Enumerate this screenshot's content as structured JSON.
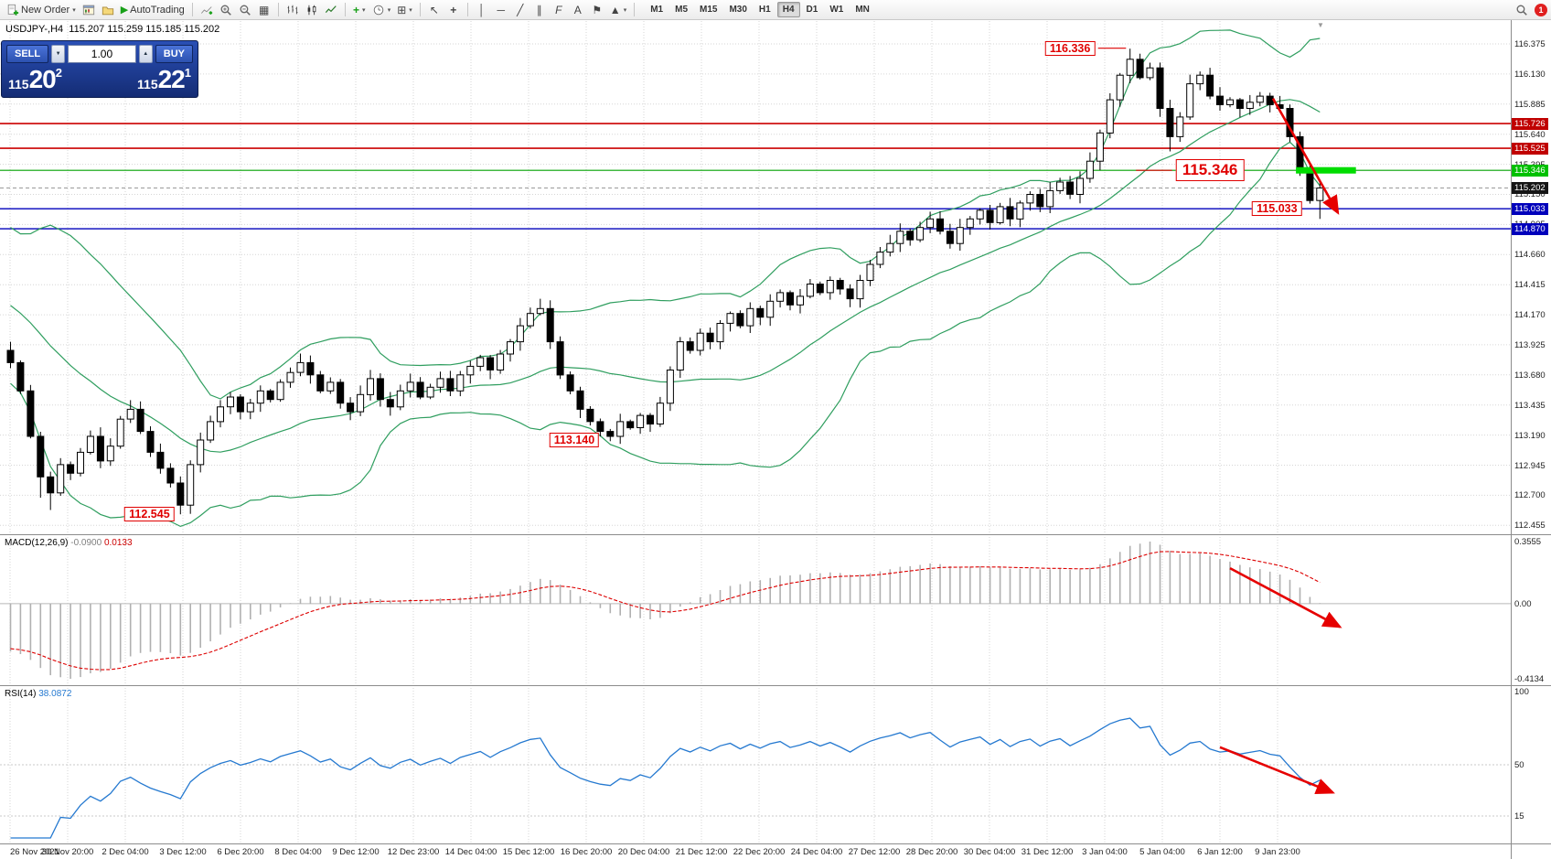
{
  "toolbar": {
    "new_order": "New Order",
    "autotrading": "AutoTrading",
    "timeframes": [
      "M1",
      "M5",
      "M15",
      "M30",
      "H1",
      "H4",
      "D1",
      "W1",
      "MN"
    ],
    "active_timeframe": "H4",
    "notification_badge": "1",
    "icons": {
      "dropdown": "▾",
      "cursor": "↖",
      "crosshair": "+",
      "vertical_line": "│",
      "horizontal_line": "─",
      "trendline": "╱",
      "channel": "∥",
      "fibonacci": "F",
      "text_tool": "A",
      "label_tool": "⚑",
      "shapes_tool": "▲",
      "tile_windows": "▦",
      "templates": "⊞",
      "play": "▶",
      "volume_down": "▼",
      "volume_up": "▲",
      "shift_marker": "▼"
    }
  },
  "trade_panel": {
    "sell_label": "SELL",
    "buy_label": "BUY",
    "volume": "1.00",
    "sell_price": {
      "main": "115",
      "big": "20",
      "sup": "2"
    },
    "buy_price": {
      "main": "115",
      "big": "22",
      "sup": "1"
    }
  },
  "chart": {
    "symbol_title": "USDJPY-,H4",
    "ohlc_line": "115.207 115.259 115.185 115.202",
    "axis_labels": [
      "116.375",
      "116.130",
      "115.885",
      "115.640",
      "115.395",
      "115.150",
      "114.905",
      "114.660",
      "114.415",
      "114.170",
      "113.925",
      "113.680",
      "113.435",
      "113.190",
      "112.945",
      "112.700",
      "112.455"
    ],
    "price_badges": [
      {
        "text": "115.726",
        "bg": "#c00000",
        "fg": "#ffffff"
      },
      {
        "text": "115.525",
        "bg": "#c00000",
        "fg": "#ffffff"
      },
      {
        "text": "115.346",
        "bg": "#00c000",
        "fg": "#ffffff"
      },
      {
        "text": "115.202",
        "bg": "#151515",
        "fg": "#ffffff"
      },
      {
        "text": "115.033",
        "bg": "#0000bb",
        "fg": "#ffffff"
      },
      {
        "text": "114.870",
        "bg": "#0000bb",
        "fg": "#ffffff"
      }
    ],
    "time_labels": [
      "26 Nov 2021",
      "30 Nov 20:00",
      "2 Dec 04:00",
      "3 Dec 12:00",
      "6 Dec 20:00",
      "8 Dec 04:00",
      "9 Dec 12:00",
      "12 Dec 23:00",
      "14 Dec 04:00",
      "15 Dec 12:00",
      "16 Dec 20:00",
      "20 Dec 04:00",
      "21 Dec 12:00",
      "22 Dec 20:00",
      "24 Dec 04:00",
      "27 Dec 12:00",
      "28 Dec 20:00",
      "30 Dec 04:00",
      "31 Dec 12:00",
      "3 Jan 04:00",
      "5 Jan 04:00",
      "6 Jan 12:00",
      "9 Jan 23:00"
    ]
  },
  "macd": {
    "label": "MACD(12,26,9)",
    "value_main": "-0.0900",
    "value_signal": "0.0133",
    "axis": [
      "0.3555",
      "0.00",
      "-0.4134"
    ]
  },
  "rsi": {
    "label": "RSI(14)",
    "value": "38.0872",
    "axis": [
      "100",
      "50",
      "15"
    ]
  },
  "chart_data": {
    "type": "candlestick",
    "symbol": "USDJPY-",
    "timeframe": "H4",
    "price_range": [
      112.435,
      116.375
    ],
    "first_open": 113.88,
    "closes": [
      113.78,
      113.55,
      113.18,
      112.85,
      112.72,
      112.95,
      112.88,
      113.05,
      113.18,
      112.98,
      113.1,
      113.32,
      113.4,
      113.22,
      113.05,
      112.92,
      112.8,
      112.62,
      112.95,
      113.15,
      113.3,
      113.42,
      113.5,
      113.38,
      113.45,
      113.55,
      113.48,
      113.62,
      113.7,
      113.78,
      113.68,
      113.55,
      113.62,
      113.45,
      113.38,
      113.52,
      113.65,
      113.48,
      113.42,
      113.55,
      113.62,
      113.5,
      113.58,
      113.65,
      113.55,
      113.68,
      113.75,
      113.82,
      113.72,
      113.85,
      113.95,
      114.08,
      114.18,
      114.22,
      113.95,
      113.68,
      113.55,
      113.4,
      113.3,
      113.22,
      113.18,
      113.3,
      113.25,
      113.35,
      113.28,
      113.45,
      113.72,
      113.95,
      113.88,
      114.02,
      113.95,
      114.1,
      114.18,
      114.08,
      114.22,
      114.15,
      114.28,
      114.35,
      114.25,
      114.32,
      114.42,
      114.35,
      114.45,
      114.38,
      114.3,
      114.45,
      114.58,
      114.68,
      114.75,
      114.85,
      114.78,
      114.88,
      114.95,
      114.85,
      114.75,
      114.88,
      114.95,
      115.02,
      114.92,
      115.05,
      114.95,
      115.08,
      115.15,
      115.05,
      115.18,
      115.25,
      115.15,
      115.28,
      115.42,
      115.65,
      115.92,
      116.12,
      116.25,
      116.1,
      116.18,
      115.85,
      115.62,
      115.78,
      116.05,
      116.12,
      115.95,
      115.88,
      115.92,
      115.85,
      115.9,
      115.95,
      115.88,
      115.85,
      115.62,
      115.35,
      115.1,
      115.202
    ],
    "pre_closes": [
      115.3,
      115.24,
      115.18,
      115.1,
      115.04,
      114.96,
      114.9,
      114.82,
      114.76,
      114.68,
      114.62,
      114.55,
      114.48,
      114.42,
      114.35,
      114.3,
      114.24,
      114.18,
      114.12,
      114.06,
      114.0,
      113.97,
      113.94,
      113.91,
      113.88,
      113.85
    ],
    "extremes": {
      "3": {
        "l": 112.68
      },
      "4": {
        "l": 112.58
      },
      "17": {
        "l": 112.545
      },
      "53": {
        "h": 114.3
      },
      "60": {
        "l": 113.14
      },
      "112": {
        "h": 116.336
      },
      "116": {
        "l": 115.5
      },
      "131": {
        "l": 114.95
      }
    },
    "levels": [
      {
        "price": 115.726,
        "color": "#cc0000",
        "width": 1.6
      },
      {
        "price": 115.525,
        "color": "#cc0000",
        "width": 1.6
      },
      {
        "price": 115.346,
        "color": "#00a000",
        "width": 1.2
      },
      {
        "price": 115.033,
        "color": "#0000bb",
        "width": 1.4
      },
      {
        "price": 114.87,
        "color": "#0000bb",
        "width": 1.4
      }
    ],
    "bid_line": 115.202,
    "zone": {
      "i1": 128.6,
      "i2": 134.6,
      "price": 115.346,
      "color": "#00dd00"
    },
    "annotations": [
      {
        "text": "116.336",
        "i": 106,
        "price": 116.34,
        "size": "normal"
      },
      {
        "text": "115.346",
        "i": 120,
        "price": 115.346,
        "size": "big"
      },
      {
        "text": "115.033",
        "i": 126.7,
        "price": 115.033,
        "size": "normal"
      },
      {
        "text": "113.140",
        "i": 56.4,
        "price": 113.15,
        "size": "normal"
      },
      {
        "text": "112.545",
        "i": 13.9,
        "price": 112.545,
        "size": "normal"
      }
    ],
    "leaders": [
      {
        "i1": 108.8,
        "i2": 111.6,
        "price": 116.34
      },
      {
        "i1": 112.6,
        "i2": 116.2,
        "price": 115.346
      }
    ],
    "arrows": [
      {
        "pane": "main",
        "i1": 126.3,
        "v1": 115.93,
        "i2": 132.8,
        "v2": 115.0
      },
      {
        "pane": "macd",
        "i1": 122.0,
        "v1": 0.23,
        "i2": 133.0,
        "v2": -0.15
      },
      {
        "pane": "rsi",
        "i1": 121.0,
        "v1": 62,
        "i2": 132.3,
        "v2": 31
      }
    ],
    "indicators": {
      "bollinger": {
        "period": 20,
        "deviation": 2,
        "color": "#2f9e5f"
      },
      "macd": {
        "fast": 12,
        "slow": 26,
        "signal": 9,
        "histogram_color": "#b0b0b0",
        "signal_color": "#dd0000"
      },
      "rsi": {
        "period": 14,
        "color": "#2579d0",
        "levels": [
          50,
          15
        ]
      }
    }
  }
}
